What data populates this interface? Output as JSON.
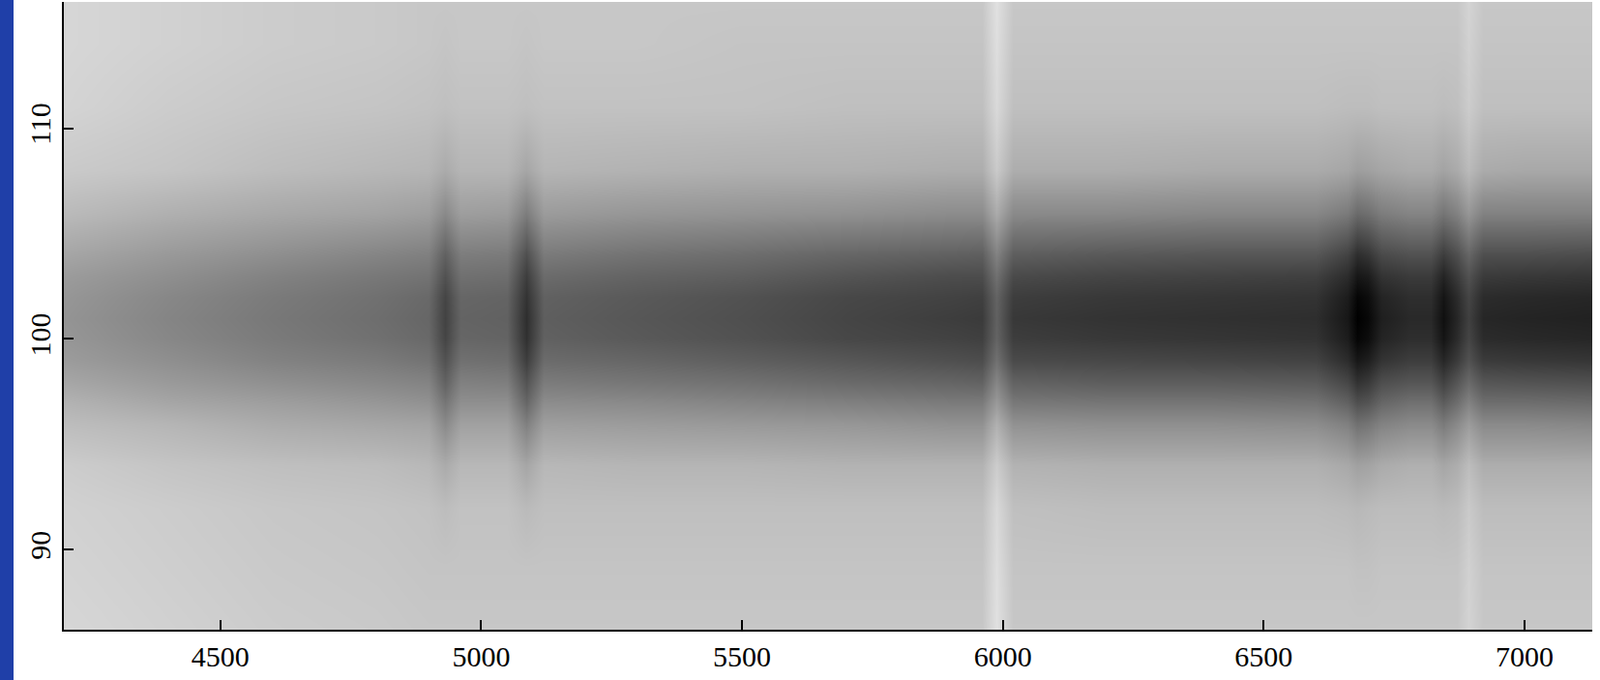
{
  "chart_data": {
    "type": "heatmap",
    "x": [
      4200,
      4400,
      4600,
      4800,
      4900,
      4930,
      4960,
      5050,
      5086,
      5120,
      5300,
      5500,
      5700,
      5900,
      5960,
      5988,
      6020,
      6200,
      6400,
      6600,
      6660,
      6680,
      6700,
      6725,
      6780,
      6820,
      6845,
      6870,
      6893,
      6920,
      7000,
      7130
    ],
    "y": [
      86,
      89,
      92,
      94,
      96,
      97,
      98,
      99,
      100,
      101,
      102,
      103,
      104,
      106,
      108,
      111,
      114,
      116
    ],
    "cells": [
      [
        16,
        17,
        18,
        20,
        26,
        30,
        35,
        39,
        41,
        42,
        41,
        39,
        35,
        27,
        21,
        17,
        16,
        16
      ],
      [
        18,
        19,
        20,
        23,
        29,
        35,
        40,
        44,
        47,
        48,
        47,
        44,
        40,
        31,
        23,
        20,
        18,
        18
      ],
      [
        20,
        21,
        22,
        25,
        33,
        38,
        44,
        49,
        52,
        53,
        52,
        49,
        44,
        34,
        26,
        22,
        20,
        20
      ],
      [
        21,
        22,
        23,
        26,
        35,
        41,
        47,
        52,
        56,
        57,
        56,
        53,
        48,
        36,
        28,
        23,
        21,
        21
      ],
      [
        22,
        23,
        24,
        28,
        36,
        43,
        49,
        55,
        59,
        60,
        59,
        55,
        50,
        38,
        29,
        24,
        22,
        22
      ],
      [
        22,
        23,
        26,
        33,
        46,
        54,
        62,
        68,
        73,
        74,
        73,
        68,
        62,
        46,
        33,
        25,
        23,
        22
      ],
      [
        22,
        23,
        24,
        28,
        37,
        44,
        50,
        56,
        60,
        61,
        60,
        56,
        51,
        38,
        29,
        24,
        22,
        22
      ],
      [
        22,
        23,
        24,
        28,
        37,
        44,
        51,
        57,
        61,
        62,
        61,
        57,
        52,
        39,
        29,
        24,
        22,
        22
      ],
      [
        22,
        23,
        27,
        35,
        50,
        60,
        68,
        76,
        81,
        82,
        80,
        76,
        69,
        51,
        35,
        25,
        23,
        22
      ],
      [
        22,
        23,
        25,
        28,
        38,
        45,
        52,
        58,
        62,
        63,
        62,
        58,
        52,
        39,
        29,
        24,
        22,
        22
      ],
      [
        22,
        23,
        25,
        29,
        39,
        46,
        54,
        60,
        65,
        66,
        65,
        61,
        55,
        41,
        30,
        24,
        22,
        22
      ],
      [
        22,
        23,
        25,
        29,
        40,
        48,
        56,
        63,
        68,
        69,
        68,
        63,
        57,
        42,
        31,
        24,
        23,
        22
      ],
      [
        22,
        23,
        25,
        30,
        41,
        50,
        59,
        66,
        72,
        73,
        72,
        67,
        60,
        43,
        31,
        25,
        23,
        22
      ],
      [
        22,
        23,
        25,
        30,
        43,
        52,
        61,
        69,
        74,
        76,
        74,
        70,
        62,
        45,
        32,
        25,
        23,
        22
      ],
      [
        22,
        23,
        25,
        30,
        43,
        52,
        62,
        70,
        75,
        77,
        75,
        70,
        63,
        45,
        32,
        25,
        23,
        22
      ],
      [
        12,
        13,
        15,
        20,
        31,
        40,
        48,
        56,
        61,
        62,
        61,
        56,
        49,
        33,
        21,
        15,
        13,
        12
      ],
      [
        22,
        23,
        25,
        30,
        43,
        53,
        62,
        71,
        76,
        78,
        76,
        71,
        63,
        46,
        32,
        25,
        23,
        22
      ],
      [
        22,
        23,
        26,
        31,
        44,
        54,
        64,
        72,
        78,
        80,
        78,
        73,
        65,
        46,
        32,
        25,
        23,
        22
      ],
      [
        22,
        23,
        26,
        31,
        44,
        54,
        64,
        73,
        79,
        81,
        79,
        74,
        66,
        47,
        33,
        25,
        23,
        22
      ],
      [
        22,
        23,
        26,
        31,
        45,
        55,
        65,
        74,
        80,
        82,
        80,
        75,
        66,
        47,
        33,
        25,
        23,
        22
      ],
      [
        22,
        23,
        27,
        34,
        50,
        62,
        73,
        83,
        89,
        91,
        89,
        83,
        74,
        52,
        35,
        26,
        23,
        22
      ],
      [
        22,
        24,
        28,
        37,
        56,
        69,
        81,
        91,
        98,
        100,
        98,
        91,
        82,
        58,
        38,
        26,
        23,
        22
      ],
      [
        22,
        24,
        27,
        36,
        54,
        67,
        78,
        88,
        95,
        97,
        95,
        89,
        79,
        56,
        37,
        26,
        23,
        22
      ],
      [
        22,
        23,
        26,
        33,
        49,
        60,
        70,
        80,
        86,
        88,
        86,
        80,
        71,
        51,
        35,
        25,
        23,
        22
      ],
      [
        22,
        23,
        26,
        31,
        46,
        56,
        67,
        76,
        82,
        84,
        82,
        77,
        68,
        48,
        33,
        25,
        23,
        22
      ],
      [
        22,
        23,
        26,
        31,
        46,
        56,
        67,
        76,
        82,
        84,
        82,
        77,
        68,
        48,
        33,
        25,
        23,
        22
      ],
      [
        22,
        23,
        27,
        35,
        52,
        64,
        75,
        85,
        92,
        94,
        92,
        86,
        76,
        54,
        36,
        26,
        23,
        22
      ],
      [
        22,
        23,
        26,
        32,
        46,
        57,
        67,
        77,
        83,
        85,
        83,
        77,
        69,
        49,
        33,
        25,
        23,
        22
      ],
      [
        17,
        18,
        21,
        26,
        39,
        49,
        59,
        68,
        73,
        75,
        73,
        68,
        60,
        41,
        27,
        20,
        18,
        17
      ],
      [
        22,
        23,
        26,
        32,
        46,
        57,
        67,
        77,
        83,
        85,
        83,
        77,
        69,
        49,
        33,
        25,
        23,
        22
      ],
      [
        22,
        23,
        26,
        32,
        46,
        57,
        68,
        78,
        84,
        86,
        84,
        78,
        69,
        49,
        34,
        25,
        23,
        22
      ],
      [
        22,
        23,
        26,
        32,
        47,
        58,
        69,
        79,
        85,
        87,
        85,
        79,
        70,
        49,
        34,
        25,
        23,
        22
      ]
    ],
    "zlim": [
      0,
      100
    ],
    "xlim": [
      4200,
      7130
    ],
    "xticks": [
      4500,
      5000,
      5500,
      6000,
      6500,
      7000
    ],
    "ylim": [
      86.2,
      116
    ],
    "yticks": [
      90,
      100,
      110
    ],
    "grid": false
  }
}
